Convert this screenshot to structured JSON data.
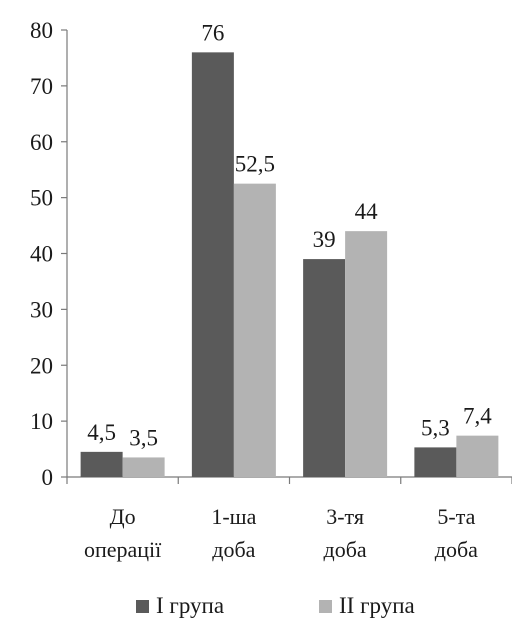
{
  "chart_data": {
    "type": "bar",
    "categories": [
      [
        "До",
        "операції"
      ],
      [
        "1-ша",
        "доба"
      ],
      [
        "3-тя",
        "доба"
      ],
      [
        "5-та",
        "доба"
      ]
    ],
    "series": [
      {
        "name": "I група",
        "color": "#5a5a5a",
        "values": [
          4.5,
          76,
          39,
          5.3
        ],
        "labels": [
          "4,5",
          "76",
          "39",
          "5,3"
        ]
      },
      {
        "name": "II група",
        "color": "#b3b3b3",
        "values": [
          3.5,
          52.5,
          44,
          7.4
        ],
        "labels": [
          "3,5",
          "52,5",
          "44",
          "7,4"
        ]
      }
    ],
    "ylim": [
      0,
      80
    ],
    "yticks": [
      "0",
      "10",
      "20",
      "30",
      "40",
      "50",
      "60",
      "70",
      "80"
    ],
    "grid": false,
    "legend": "bottom"
  }
}
